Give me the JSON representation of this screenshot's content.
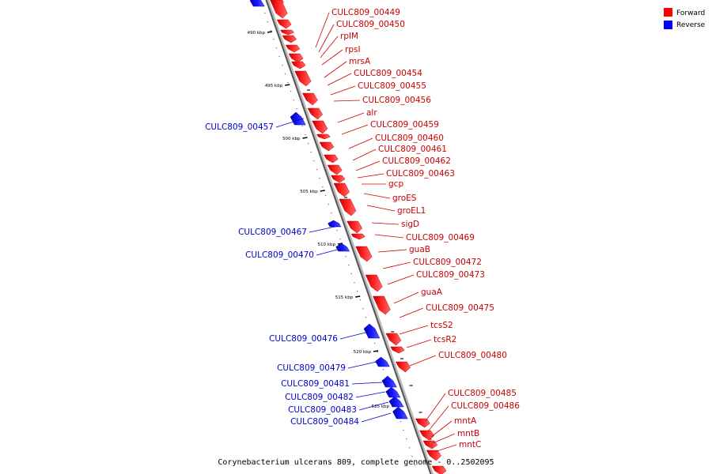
{
  "caption": "Corynebacterium ulcerans 809, complete genome - 0..2502095",
  "legend": [
    {
      "label": "Forward",
      "color": "#ff0000"
    },
    {
      "label": "Reverse",
      "color": "#0000ff"
    }
  ],
  "scale_ticks": [
    "490 kbp",
    "495 kbp",
    "500 kbp",
    "505 kbp",
    "510 kbp",
    "515 kbp",
    "520 kbp",
    "525 kbp"
  ],
  "genes": [
    {
      "name": "CULC809_00449",
      "strand": "forward"
    },
    {
      "name": "CULC809_00450",
      "strand": "forward"
    },
    {
      "name": "rplM",
      "strand": "forward"
    },
    {
      "name": "rpsI",
      "strand": "forward"
    },
    {
      "name": "mrsA",
      "strand": "forward"
    },
    {
      "name": "CULC809_00454",
      "strand": "forward"
    },
    {
      "name": "CULC809_00455",
      "strand": "forward"
    },
    {
      "name": "CULC809_00456",
      "strand": "forward"
    },
    {
      "name": "alr",
      "strand": "forward"
    },
    {
      "name": "CULC809_00457",
      "strand": "reverse"
    },
    {
      "name": "CULC809_00459",
      "strand": "forward"
    },
    {
      "name": "CULC809_00460",
      "strand": "forward"
    },
    {
      "name": "CULC809_00461",
      "strand": "forward"
    },
    {
      "name": "CULC809_00462",
      "strand": "forward"
    },
    {
      "name": "CULC809_00463",
      "strand": "forward"
    },
    {
      "name": "gcp",
      "strand": "forward"
    },
    {
      "name": "groES",
      "strand": "forward"
    },
    {
      "name": "groEL1",
      "strand": "forward"
    },
    {
      "name": "sigD",
      "strand": "forward"
    },
    {
      "name": "CULC809_00467",
      "strand": "reverse"
    },
    {
      "name": "CULC809_00469",
      "strand": "forward"
    },
    {
      "name": "guaB",
      "strand": "forward"
    },
    {
      "name": "CULC809_00470",
      "strand": "reverse"
    },
    {
      "name": "CULC809_00472",
      "strand": "forward"
    },
    {
      "name": "CULC809_00473",
      "strand": "forward"
    },
    {
      "name": "guaA",
      "strand": "forward"
    },
    {
      "name": "CULC809_00475",
      "strand": "forward"
    },
    {
      "name": "tcsS2",
      "strand": "forward"
    },
    {
      "name": "CULC809_00476",
      "strand": "reverse"
    },
    {
      "name": "tcsR2",
      "strand": "forward"
    },
    {
      "name": "CULC809_00480",
      "strand": "forward"
    },
    {
      "name": "CULC809_00479",
      "strand": "reverse"
    },
    {
      "name": "CULC809_00481",
      "strand": "reverse"
    },
    {
      "name": "CULC809_00482",
      "strand": "reverse"
    },
    {
      "name": "CULC809_00483",
      "strand": "reverse"
    },
    {
      "name": "CULC809_00484",
      "strand": "reverse"
    },
    {
      "name": "CULC809_00485",
      "strand": "forward"
    },
    {
      "name": "CULC809_00486",
      "strand": "forward"
    },
    {
      "name": "mntA",
      "strand": "forward"
    },
    {
      "name": "mntB",
      "strand": "forward"
    },
    {
      "name": "mntC",
      "strand": "forward"
    }
  ]
}
